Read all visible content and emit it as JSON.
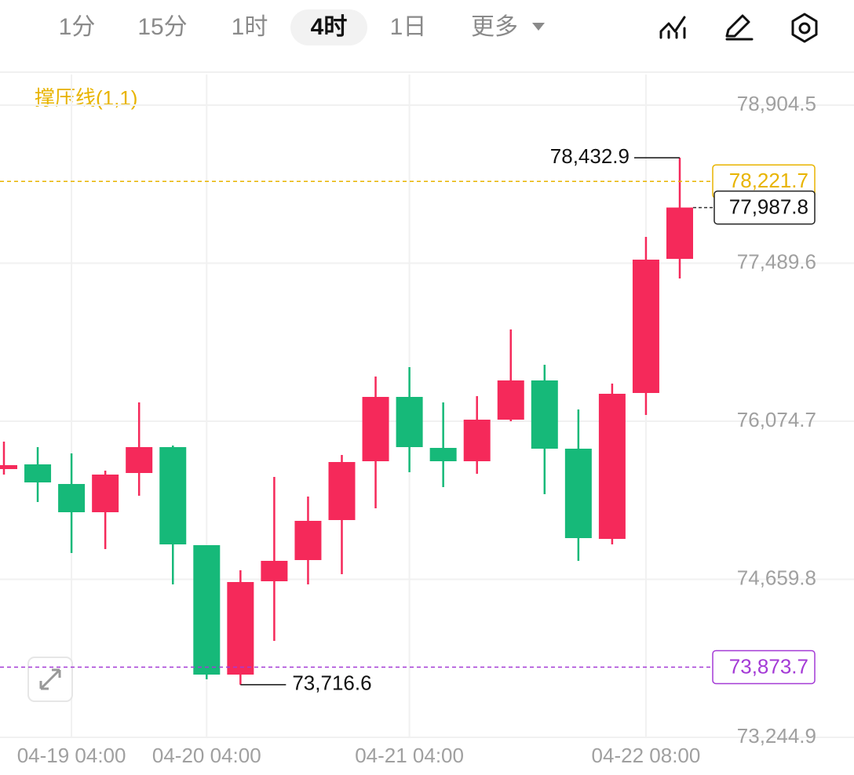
{
  "toolbar": {
    "tabs": [
      "1分",
      "15分",
      "1时",
      "4时",
      "1日",
      "更多"
    ],
    "active": 3
  },
  "chart_data": {
    "type": "candlestick",
    "indicator": "撑压线(1,1)",
    "categories": [
      null,
      null,
      "04-19 04:00",
      null,
      null,
      null,
      "04-20 04:00",
      null,
      null,
      null,
      null,
      null,
      "04-21 04:00",
      null,
      null,
      null,
      null,
      null,
      null,
      "04-22 08:00",
      null
    ],
    "open": [
      75646.4,
      75688.6,
      75513.0,
      75260.2,
      75611.3,
      75843.1,
      74965.3,
      73806.7,
      74642.3,
      74831.9,
      75190.0,
      75716.7,
      76292.5,
      75836.0,
      75716.7,
      76088.8,
      76439.9,
      75829.0,
      75021.5,
      76327.6,
      77528.3
    ],
    "high": [
      75892.2,
      75843.1,
      75786.9,
      75632.4,
      76243.3,
      75857.1,
      74965.3,
      74740.6,
      75576.2,
      75400.7,
      75772.8,
      76475.0,
      76559.3,
      76243.3,
      76299.5,
      76896.4,
      76580.4,
      76180.1,
      76411.8,
      77725.0,
      78432.9
    ],
    "low": [
      75597.3,
      75351.5,
      74895.1,
      74930.2,
      75407.7,
      74614.2,
      73764.5,
      73716.6,
      74108.6,
      74614.2,
      74705.5,
      75295.3,
      75618.4,
      75484.9,
      75604.3,
      76074.8,
      75421.7,
      74824.9,
      74972.3,
      76131.0,
      77352.8
    ],
    "close": [
      75681.6,
      75527.1,
      75260.2,
      75597.3,
      75843.1,
      74972.3,
      73806.7,
      74635.3,
      74824.9,
      75183.0,
      75709.6,
      76292.5,
      75843.1,
      75716.7,
      76088.8,
      76439.9,
      75829.0,
      75028.5,
      76320.6,
      77521.3,
      77987.8
    ],
    "up_color": "#f5295a",
    "down_color": "#16b979",
    "high_label": "78,432.9",
    "low_label": "73,716.6",
    "last_price_label": "77,987.8",
    "levels": [
      {
        "value": 78221.7,
        "label": "78,221.7",
        "color": "#e8b400"
      },
      {
        "value": 73873.7,
        "label": "73,873.7",
        "color": "#a43ad6"
      }
    ],
    "ylim": [
      73244.9,
      79178.5
    ],
    "yticks": [
      {
        "value": 78904.5,
        "label": "78,904.5"
      },
      {
        "value": 77489.6,
        "label": "77,489.6"
      },
      {
        "value": 76074.7,
        "label": "76,074.7"
      },
      {
        "value": 74659.8,
        "label": "74,659.8"
      },
      {
        "value": 73244.9,
        "label": "73,244.9"
      }
    ],
    "grid": true
  }
}
